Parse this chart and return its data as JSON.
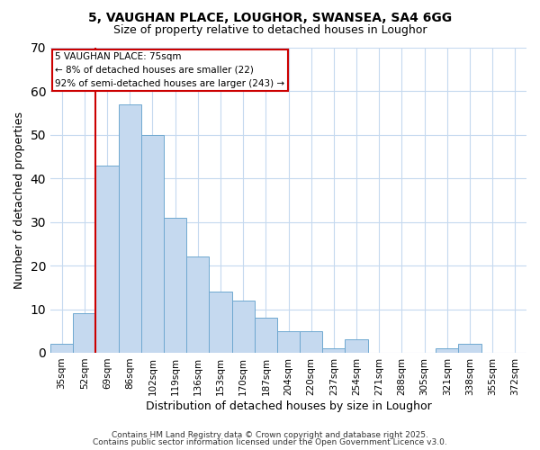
{
  "title1": "5, VAUGHAN PLACE, LOUGHOR, SWANSEA, SA4 6GG",
  "title2": "Size of property relative to detached houses in Loughor",
  "xlabel": "Distribution of detached houses by size in Loughor",
  "ylabel": "Number of detached properties",
  "categories": [
    "35sqm",
    "52sqm",
    "69sqm",
    "86sqm",
    "102sqm",
    "119sqm",
    "136sqm",
    "153sqm",
    "170sqm",
    "187sqm",
    "204sqm",
    "220sqm",
    "237sqm",
    "254sqm",
    "271sqm",
    "288sqm",
    "305sqm",
    "321sqm",
    "338sqm",
    "355sqm",
    "372sqm"
  ],
  "values": [
    2,
    9,
    43,
    57,
    50,
    31,
    22,
    14,
    12,
    8,
    5,
    5,
    1,
    3,
    0,
    0,
    0,
    1,
    2,
    0,
    0
  ],
  "bar_color": "#c5d9ef",
  "bar_edge_color": "#6fa8d0",
  "bg_color": "#ffffff",
  "grid_color": "#c5d9ef",
  "vline_color": "#cc0000",
  "vline_x_index": 2,
  "annotation_text": "5 VAUGHAN PLACE: 75sqm\n← 8% of detached houses are smaller (22)\n92% of semi-detached houses are larger (243) →",
  "annotation_box_color": "#cc0000",
  "ylim": [
    0,
    70
  ],
  "yticks": [
    0,
    10,
    20,
    30,
    40,
    50,
    60,
    70
  ],
  "footnote1": "Contains HM Land Registry data © Crown copyright and database right 2025.",
  "footnote2": "Contains public sector information licensed under the Open Government Licence v3.0."
}
